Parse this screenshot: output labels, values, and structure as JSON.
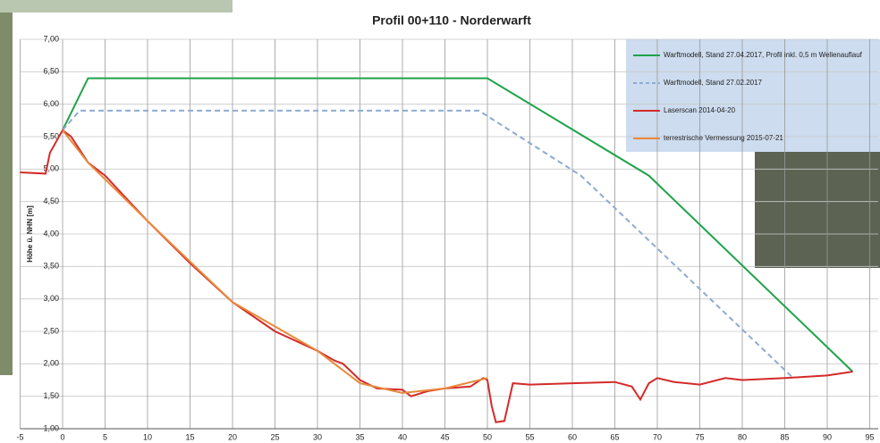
{
  "chart_data": {
    "type": "line",
    "title": "Profil 00+110 - Norderwarft",
    "ylabel": "Höhe ü. NHN [m]",
    "xlim": [
      -5,
      96
    ],
    "ylim": [
      1,
      7
    ],
    "xticks": [
      -5,
      0,
      5,
      10,
      15,
      20,
      25,
      30,
      35,
      40,
      45,
      50,
      55,
      60,
      65,
      70,
      75,
      80,
      85,
      90,
      95
    ],
    "yticks": [
      {
        "value": 1,
        "label": "1,00"
      },
      {
        "value": 1.5,
        "label": "1,50"
      },
      {
        "value": 2,
        "label": "2,00"
      },
      {
        "value": 2.5,
        "label": "2,50"
      },
      {
        "value": 3,
        "label": "3,00"
      },
      {
        "value": 3.5,
        "label": "3,50"
      },
      {
        "value": 4,
        "label": "4,00"
      },
      {
        "value": 4.5,
        "label": "4,50"
      },
      {
        "value": 5,
        "label": "5,00"
      },
      {
        "value": 5.5,
        "label": "5,50"
      },
      {
        "value": 6,
        "label": "6,00"
      },
      {
        "value": 6.5,
        "label": "6,50"
      },
      {
        "value": 7,
        "label": "7,00"
      }
    ],
    "grid": true,
    "legend": "upper right",
    "series": [
      {
        "name": "Warftmodell, Stand 27.04.2017, Profil inkl. 0,5 m Wellenauflauf",
        "color": "#1fa34a",
        "dash": false,
        "x": [
          0,
          3,
          50,
          69,
          93
        ],
        "values": [
          5.6,
          6.4,
          6.4,
          4.9,
          1.88
        ]
      },
      {
        "name": "Warftmodell, Stand 27.02.2017",
        "color": "#8fabd0",
        "dash": true,
        "x": [
          0,
          2,
          49,
          61,
          86
        ],
        "values": [
          5.6,
          5.9,
          5.9,
          4.9,
          1.78
        ]
      },
      {
        "name": "Laserscan 2014-04-20",
        "color": "#d42a2a",
        "dash": false,
        "x": [
          -5,
          -2,
          -1.5,
          0,
          1,
          3,
          5,
          10,
          15,
          20,
          25,
          30,
          32,
          33,
          35,
          37,
          40,
          41,
          43,
          45,
          48,
          49.5,
          50,
          50.5,
          51,
          52,
          53,
          55,
          60,
          65,
          67,
          68,
          69,
          70,
          72,
          75,
          78,
          80,
          85,
          90,
          93
        ],
        "values": [
          4.95,
          4.93,
          5.25,
          5.6,
          5.5,
          5.1,
          4.9,
          4.2,
          3.55,
          2.95,
          2.5,
          2.2,
          2.05,
          2.0,
          1.75,
          1.62,
          1.6,
          1.5,
          1.58,
          1.62,
          1.65,
          1.78,
          1.75,
          1.35,
          1.1,
          1.12,
          1.7,
          1.68,
          1.7,
          1.72,
          1.65,
          1.45,
          1.7,
          1.78,
          1.72,
          1.68,
          1.78,
          1.75,
          1.78,
          1.82,
          1.88
        ]
      },
      {
        "name": "terrestrische Vermessung 2015-07-21",
        "color": "#e8893a",
        "dash": false,
        "x": [
          0,
          3,
          10,
          20,
          30,
          35,
          40,
          45,
          50
        ],
        "values": [
          5.6,
          5.1,
          4.2,
          2.95,
          2.2,
          1.7,
          1.55,
          1.62,
          1.78
        ]
      }
    ]
  }
}
